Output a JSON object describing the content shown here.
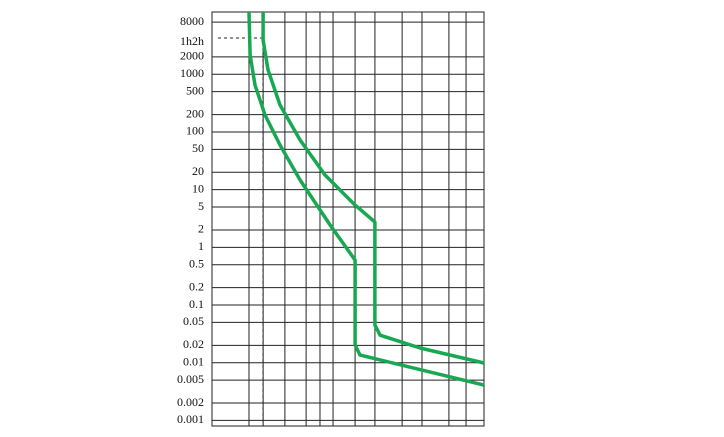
{
  "chart_data": {
    "type": "line",
    "ylog": true,
    "ylim": [
      0.0008,
      12000
    ],
    "yticks": [
      8000,
      {
        "value": 3600,
        "label": "1h2h"
      },
      2000,
      1000,
      500,
      200,
      100,
      50,
      20,
      10,
      5,
      2,
      1,
      0.5,
      0.2,
      0.1,
      0.05,
      0.02,
      0.01,
      0.005,
      0.002,
      0.001
    ],
    "xlim": [
      0,
      100
    ],
    "xticks": [
      13.6,
      18.8,
      26.8,
      34.6,
      39.7,
      44.5,
      52.6,
      59.9,
      69.9,
      77.2,
      87.1,
      93.4
    ],
    "grid": true,
    "series": [
      {
        "color": "#17a852",
        "x": [
          13.6,
          14,
          15.8,
          19.5,
          25,
          32.4,
          43.4,
          52.6,
          52.6,
          54.4,
          61.8,
          100
        ],
        "values": [
          12000,
          2160,
          652,
          197,
          59.4,
          14.7,
          2.45,
          0.6,
          0.0203,
          0.0136,
          0.0112,
          0.0041
        ]
      },
      {
        "color": "#17a852",
        "x": [
          18.8,
          18.8,
          20.6,
          25,
          32.4,
          41.5,
          52.6,
          59.9,
          59.9,
          61.8,
          76.5,
          100
        ],
        "values": [
          12000,
          3920,
          1193,
          293,
          72.6,
          18,
          5.4,
          2.75,
          0.045,
          0.03,
          0.018,
          0.0099
        ]
      }
    ]
  }
}
